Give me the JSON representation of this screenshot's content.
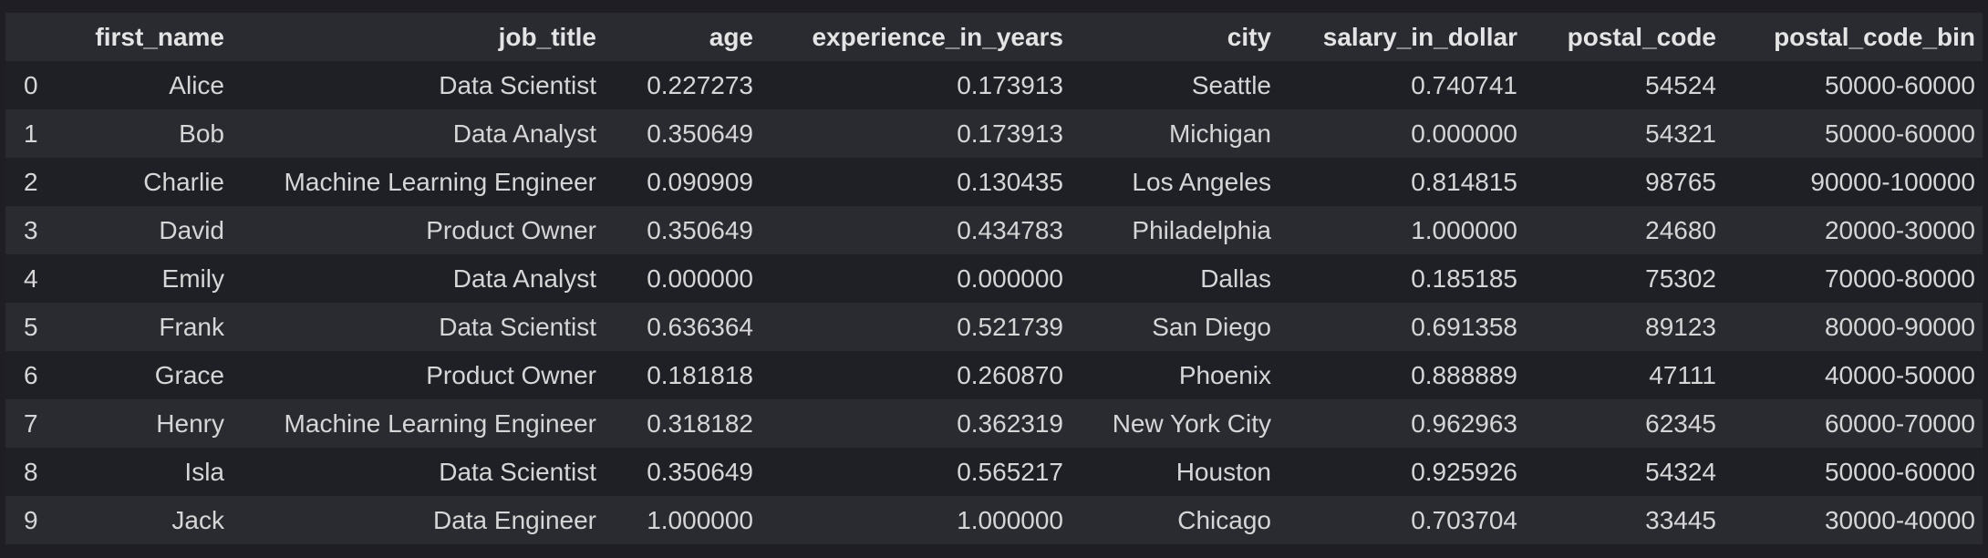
{
  "table": {
    "columns": [
      "",
      "first_name",
      "job_title",
      "age",
      "experience_in_years",
      "city",
      "salary_in_dollar",
      "postal_code",
      "postal_code_bin"
    ],
    "rows": [
      [
        "0",
        "Alice",
        "Data Scientist",
        "0.227273",
        "0.173913",
        "Seattle",
        "0.740741",
        "54524",
        "50000-60000"
      ],
      [
        "1",
        "Bob",
        "Data Analyst",
        "0.350649",
        "0.173913",
        "Michigan",
        "0.000000",
        "54321",
        "50000-60000"
      ],
      [
        "2",
        "Charlie",
        "Machine Learning Engineer",
        "0.090909",
        "0.130435",
        "Los Angeles",
        "0.814815",
        "98765",
        "90000-100000"
      ],
      [
        "3",
        "David",
        "Product Owner",
        "0.350649",
        "0.434783",
        "Philadelphia",
        "1.000000",
        "24680",
        "20000-30000"
      ],
      [
        "4",
        "Emily",
        "Data Analyst",
        "0.000000",
        "0.000000",
        "Dallas",
        "0.185185",
        "75302",
        "70000-80000"
      ],
      [
        "5",
        "Frank",
        "Data Scientist",
        "0.636364",
        "0.521739",
        "San Diego",
        "0.691358",
        "89123",
        "80000-90000"
      ],
      [
        "6",
        "Grace",
        "Product Owner",
        "0.181818",
        "0.260870",
        "Phoenix",
        "0.888889",
        "47111",
        "40000-50000"
      ],
      [
        "7",
        "Henry",
        "Machine Learning Engineer",
        "0.318182",
        "0.362319",
        "New York City",
        "0.962963",
        "62345",
        "60000-70000"
      ],
      [
        "8",
        "Isla",
        "Data Scientist",
        "0.350649",
        "0.565217",
        "Houston",
        "0.925926",
        "54324",
        "50000-60000"
      ],
      [
        "9",
        "Jack",
        "Data Engineer",
        "1.000000",
        "1.000000",
        "Chicago",
        "0.703704",
        "33445",
        "30000-40000"
      ]
    ]
  }
}
